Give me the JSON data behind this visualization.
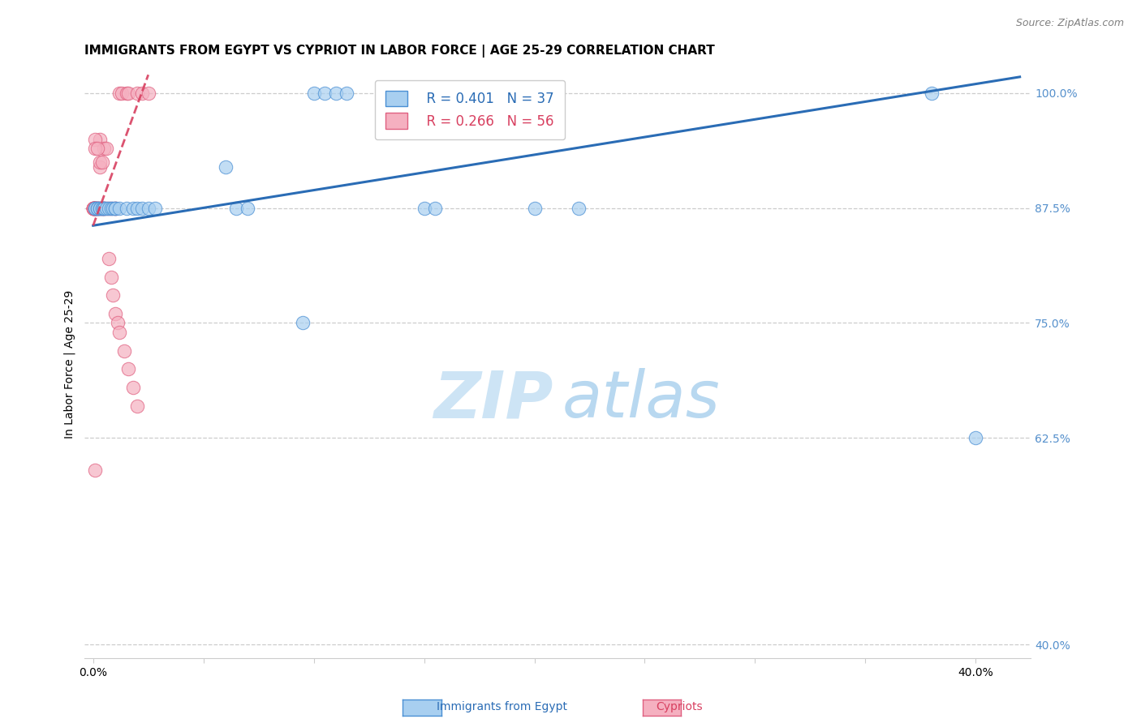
{
  "title": "IMMIGRANTS FROM EGYPT VS CYPRIOT IN LABOR FORCE | AGE 25-29 CORRELATION CHART",
  "source": "Source: ZipAtlas.com",
  "ylabel": "In Labor Force | Age 25-29",
  "xlim": [
    -0.004,
    0.425
  ],
  "ylim": [
    0.385,
    1.025
  ],
  "ytick_vals": [
    0.4,
    0.625,
    0.75,
    0.875,
    1.0
  ],
  "ytick_labels": [
    "40.0%",
    "62.5%",
    "75.0%",
    "87.5%",
    "100.0%"
  ],
  "xtick_vals": [
    0.0,
    0.05,
    0.1,
    0.15,
    0.2,
    0.25,
    0.3,
    0.35,
    0.4
  ],
  "xtick_labels": [
    "0.0%",
    "",
    "",
    "",
    "",
    "",
    "",
    "",
    "40.0%"
  ],
  "blue_x": [
    0.001,
    0.001,
    0.002,
    0.002,
    0.003,
    0.003,
    0.004,
    0.004,
    0.005,
    0.005,
    0.006,
    0.007,
    0.008,
    0.009,
    0.01,
    0.01,
    0.012,
    0.015,
    0.018,
    0.02,
    0.022,
    0.025,
    0.028,
    0.06,
    0.065,
    0.07,
    0.1,
    0.105,
    0.11,
    0.115,
    0.15,
    0.155,
    0.2,
    0.22,
    0.38,
    0.4,
    0.095
  ],
  "blue_y": [
    0.875,
    0.875,
    0.875,
    0.875,
    0.875,
    0.875,
    0.875,
    0.875,
    0.875,
    0.875,
    0.875,
    0.875,
    0.875,
    0.875,
    0.875,
    0.875,
    0.875,
    0.875,
    0.875,
    0.875,
    0.875,
    0.875,
    0.875,
    0.92,
    0.875,
    0.875,
    1.0,
    1.0,
    1.0,
    1.0,
    0.875,
    0.875,
    0.875,
    0.875,
    1.0,
    0.625,
    0.75
  ],
  "pink_x": [
    0.0,
    0.0,
    0.0,
    0.0,
    0.0,
    0.0,
    0.0,
    0.0,
    0.001,
    0.001,
    0.001,
    0.001,
    0.001,
    0.001,
    0.002,
    0.002,
    0.002,
    0.002,
    0.003,
    0.003,
    0.003,
    0.004,
    0.004,
    0.005,
    0.005,
    0.006,
    0.007,
    0.008,
    0.01,
    0.01,
    0.012,
    0.013,
    0.015,
    0.016,
    0.02,
    0.022,
    0.025,
    0.003,
    0.001,
    0.001,
    0.002,
    0.003,
    0.004,
    0.005,
    0.006,
    0.007,
    0.008,
    0.009,
    0.01,
    0.011,
    0.012,
    0.014,
    0.016,
    0.018,
    0.02,
    0.001
  ],
  "pink_y": [
    0.875,
    0.875,
    0.875,
    0.875,
    0.875,
    0.875,
    0.875,
    0.875,
    0.875,
    0.875,
    0.875,
    0.875,
    0.875,
    0.875,
    0.875,
    0.875,
    0.875,
    0.875,
    0.95,
    0.92,
    0.875,
    0.875,
    0.875,
    0.94,
    0.875,
    0.94,
    0.875,
    0.875,
    0.875,
    0.875,
    1.0,
    1.0,
    1.0,
    1.0,
    1.0,
    1.0,
    1.0,
    0.875,
    0.95,
    0.94,
    0.94,
    0.925,
    0.925,
    0.875,
    0.875,
    0.82,
    0.8,
    0.78,
    0.76,
    0.75,
    0.74,
    0.72,
    0.7,
    0.68,
    0.66,
    0.59
  ],
  "R_blue": 0.401,
  "N_blue": 37,
  "R_pink": 0.266,
  "N_pink": 56,
  "blue_fill": "#a8cff0",
  "pink_fill": "#f5b0c0",
  "blue_edge": "#4a8fd4",
  "pink_edge": "#e06080",
  "blue_line": "#2a6cb5",
  "pink_line": "#d84060",
  "grid_color": "#cccccc",
  "tick_color": "#5590cc",
  "title_fontsize": 11,
  "tick_fontsize": 10,
  "ylabel_fontsize": 10,
  "legend_fontsize": 12
}
